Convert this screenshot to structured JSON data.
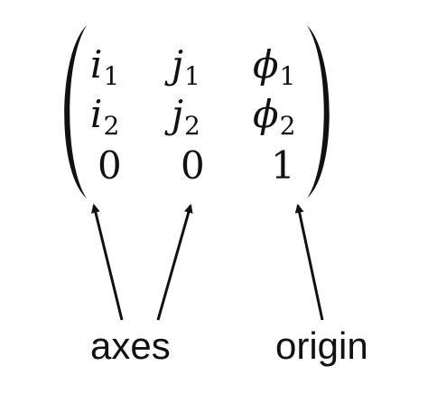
{
  "matrix": {
    "rows": [
      [
        {
          "base": "i",
          "sub": "1"
        },
        {
          "base": "j",
          "sub": "1"
        },
        {
          "base": "ϕ",
          "sub": "1"
        }
      ],
      [
        {
          "base": "i",
          "sub": "2"
        },
        {
          "base": "j",
          "sub": "2"
        },
        {
          "base": "ϕ",
          "sub": "2"
        }
      ],
      [
        {
          "base": "0",
          "sub": ""
        },
        {
          "base": "0",
          "sub": ""
        },
        {
          "base": "1",
          "sub": ""
        }
      ]
    ]
  },
  "labels": {
    "axes": "axes",
    "origin": "origin"
  }
}
